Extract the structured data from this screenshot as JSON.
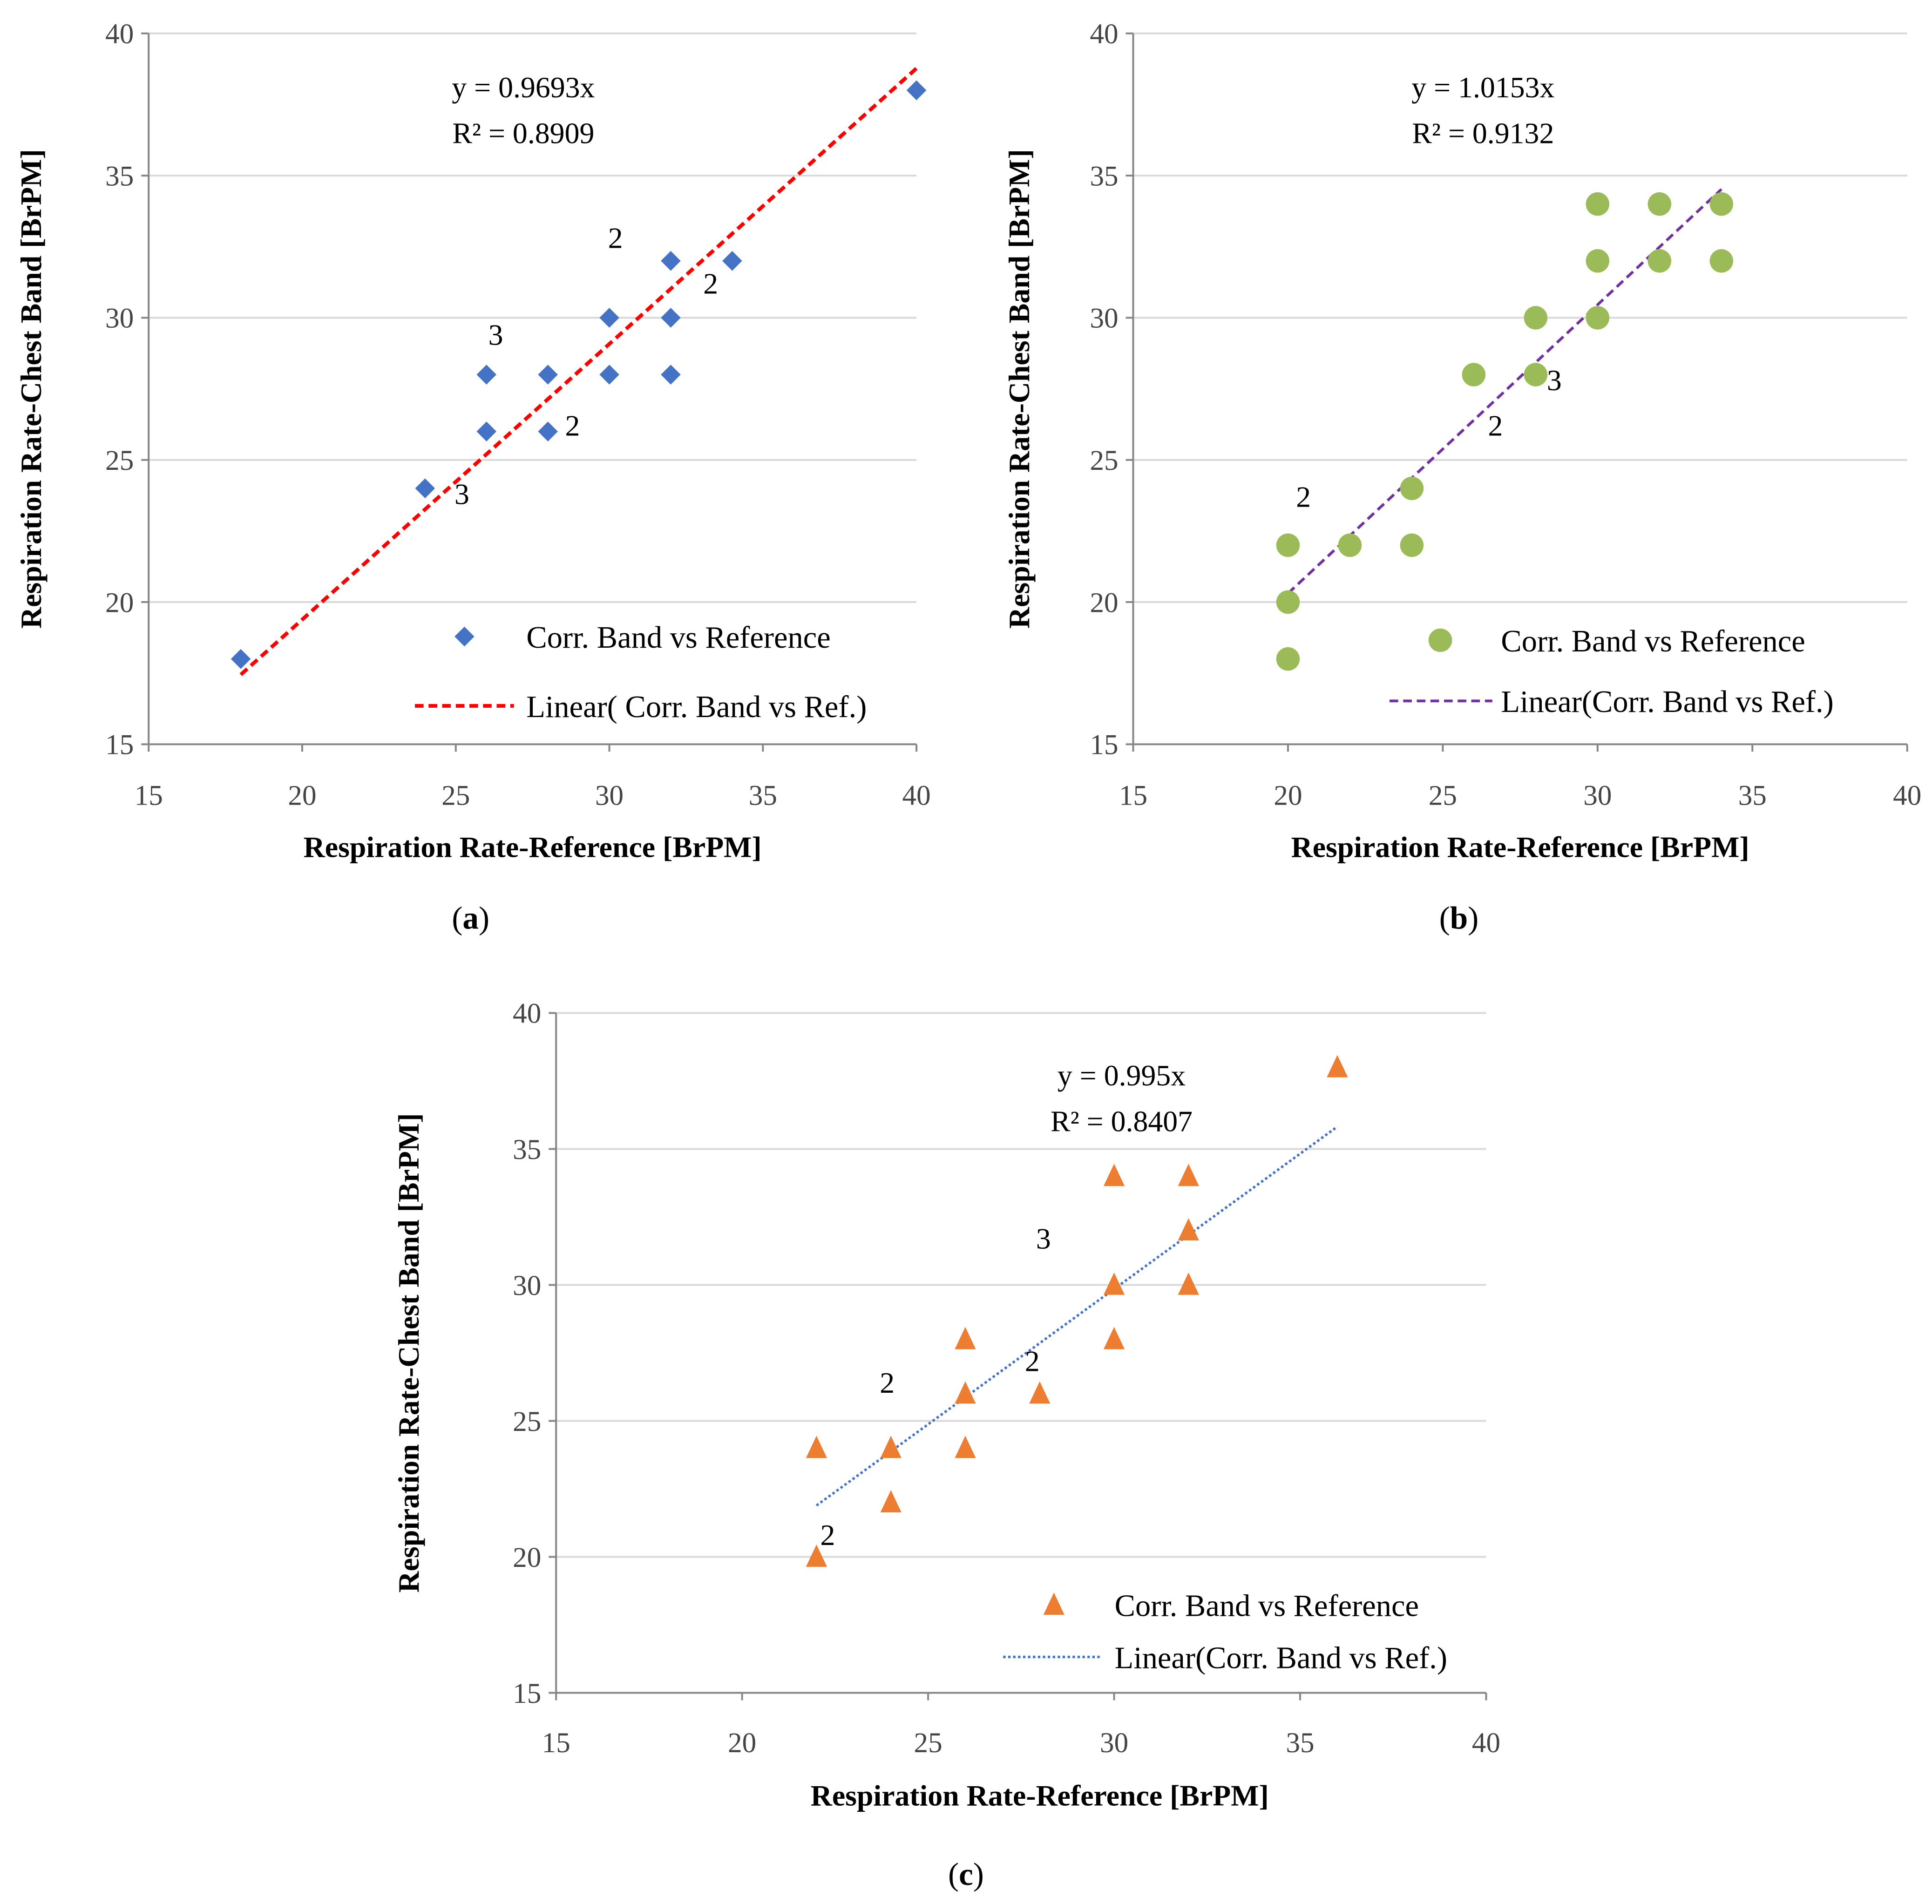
{
  "chart_data": [
    {
      "id": "a",
      "type": "scatter",
      "caption_pre": "(",
      "caption_letter": "a",
      "caption_post": ")",
      "xlabel": "Respiration Rate-Reference [BrPM]",
      "ylabel": "Respiration Rate-Chest Band [BrPM]",
      "xlim": [
        15,
        40
      ],
      "ylim": [
        15,
        40
      ],
      "xticks": [
        15,
        20,
        25,
        30,
        35,
        40
      ],
      "yticks": [
        15,
        20,
        25,
        30,
        35,
        40
      ],
      "grid": "horizontal",
      "marker": "diamond",
      "marker_color": "#4472C4",
      "trend_color": "#FF0000",
      "trend_style": "dashed",
      "series_name": "Corr. Band vs Reference",
      "trend_name": "Linear( Corr. Band vs Ref.)",
      "legend_position": "bottom-right",
      "equation": "y = 0.9693x",
      "r2": "R² = 0.8909",
      "equation_anchor": [
        27.2,
        38.1
      ],
      "slope": 0.9693,
      "trend_x": [
        18,
        40
      ],
      "points": [
        [
          18,
          18
        ],
        [
          24,
          24
        ],
        [
          26,
          26
        ],
        [
          26,
          28
        ],
        [
          28,
          26
        ],
        [
          28,
          28
        ],
        [
          30,
          28
        ],
        [
          30,
          30
        ],
        [
          32,
          28
        ],
        [
          32,
          30
        ],
        [
          32,
          32
        ],
        [
          34,
          32
        ],
        [
          40,
          38
        ]
      ],
      "annotations": [
        {
          "text": "3",
          "x": 26.3,
          "y": 29.4
        },
        {
          "text": "2",
          "x": 28.8,
          "y": 26.2
        },
        {
          "text": "3",
          "x": 25.2,
          "y": 23.8
        },
        {
          "text": "2",
          "x": 30.2,
          "y": 32.8
        },
        {
          "text": "2",
          "x": 33.3,
          "y": 31.2
        }
      ]
    },
    {
      "id": "b",
      "type": "scatter",
      "caption_pre": "(",
      "caption_letter": "b",
      "caption_post": ")",
      "xlabel": "Respiration Rate-Reference [BrPM]",
      "ylabel": "Respiration Rate-Chest Band [BrPM]",
      "xlim": [
        15,
        40
      ],
      "ylim": [
        15,
        40
      ],
      "xticks": [
        15,
        20,
        25,
        30,
        35,
        40
      ],
      "yticks": [
        15,
        20,
        25,
        30,
        35,
        40
      ],
      "grid": "horizontal",
      "marker": "circle",
      "marker_color": "#9BBB59",
      "trend_color": "#7030A0",
      "trend_style": "dashed",
      "series_name": "Corr. Band vs Reference",
      "trend_name": "Linear(Corr. Band vs Ref.)",
      "legend_position": "bottom-right",
      "equation": "y = 1.0153x",
      "r2": "R² = 0.9132",
      "equation_anchor": [
        26.3,
        38.1
      ],
      "slope": 1.0153,
      "trend_x": [
        20,
        34
      ],
      "points": [
        [
          20,
          18
        ],
        [
          20,
          20
        ],
        [
          20,
          22
        ],
        [
          22,
          22
        ],
        [
          24,
          22
        ],
        [
          24,
          24
        ],
        [
          26,
          28
        ],
        [
          28,
          28
        ],
        [
          28,
          30
        ],
        [
          30,
          30
        ],
        [
          30,
          32
        ],
        [
          30,
          34
        ],
        [
          32,
          32
        ],
        [
          32,
          34
        ],
        [
          34,
          32
        ],
        [
          34,
          34
        ]
      ],
      "annotations": [
        {
          "text": "2",
          "x": 20.5,
          "y": 23.7
        },
        {
          "text": "2",
          "x": 26.7,
          "y": 26.2
        },
        {
          "text": "3",
          "x": 28.6,
          "y": 27.8
        }
      ]
    },
    {
      "id": "c",
      "type": "scatter",
      "caption_pre": "(",
      "caption_letter": "c",
      "caption_post": ")",
      "xlabel": "Respiration Rate-Reference [BrPM]",
      "ylabel": "Respiration Rate-Chest Band [BrPM]",
      "xlim": [
        15,
        40
      ],
      "ylim": [
        15,
        40
      ],
      "xticks": [
        15,
        20,
        25,
        30,
        35,
        40
      ],
      "yticks": [
        15,
        20,
        25,
        30,
        35,
        40
      ],
      "grid": "horizontal",
      "marker": "triangle",
      "marker_color": "#ED7D31",
      "trend_color": "#4472C4",
      "trend_style": "dotted",
      "series_name": "Corr. Band vs Reference",
      "trend_name": "Linear(Corr. Band vs Ref.)",
      "legend_position": "bottom-right",
      "equation": "y = 0.995x",
      "r2": "R² = 0.8407",
      "equation_anchor": [
        30.2,
        37.7
      ],
      "slope": 0.995,
      "trend_x": [
        22,
        36
      ],
      "points": [
        [
          22,
          20
        ],
        [
          22,
          24
        ],
        [
          24,
          22
        ],
        [
          24,
          24
        ],
        [
          26,
          24
        ],
        [
          26,
          26
        ],
        [
          26,
          28
        ],
        [
          28,
          26
        ],
        [
          30,
          28
        ],
        [
          30,
          30
        ],
        [
          30,
          34
        ],
        [
          32,
          30
        ],
        [
          32,
          32
        ],
        [
          32,
          34
        ],
        [
          36,
          38
        ]
      ],
      "annotations": [
        {
          "text": "3",
          "x": 28.1,
          "y": 31.7
        },
        {
          "text": "2",
          "x": 23.9,
          "y": 26.4
        },
        {
          "text": "2",
          "x": 27.8,
          "y": 27.2
        },
        {
          "text": "2",
          "x": 22.3,
          "y": 20.8
        }
      ]
    }
  ]
}
